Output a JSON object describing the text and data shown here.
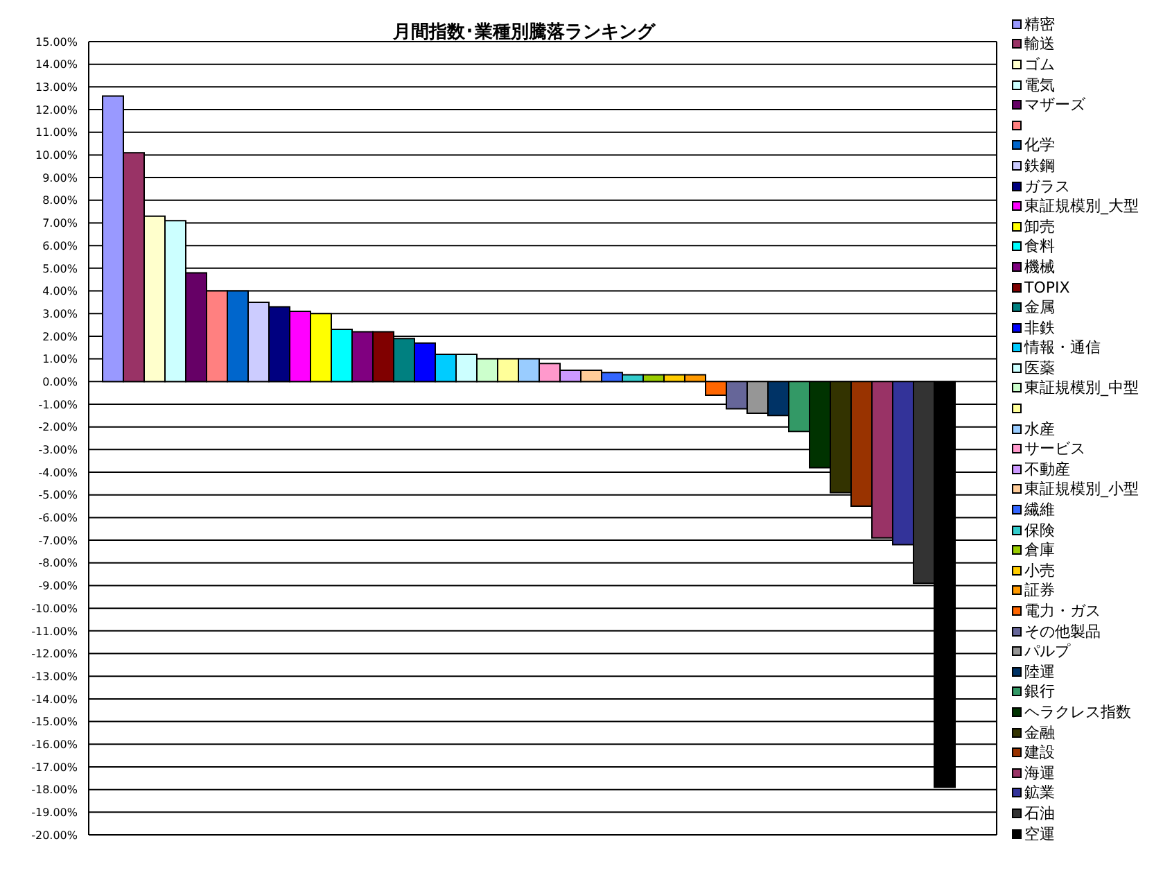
{
  "chart_data": {
    "type": "bar",
    "title": "月間指数･業種別騰落ランキング",
    "categories": [
      null
    ],
    "ylim": [
      -20,
      15
    ],
    "yticks": [
      {
        "value": 15,
        "label": "15.00%"
      },
      {
        "value": 14,
        "label": "14.00%"
      },
      {
        "value": 13,
        "label": "13.00%"
      },
      {
        "value": 12,
        "label": "12.00%"
      },
      {
        "value": 11,
        "label": "11.00%"
      },
      {
        "value": 10,
        "label": "10.00%"
      },
      {
        "value": 9,
        "label": "9.00%"
      },
      {
        "value": 8,
        "label": "8.00%"
      },
      {
        "value": 7,
        "label": "7.00%"
      },
      {
        "value": 6,
        "label": "6.00%"
      },
      {
        "value": 5,
        "label": "5.00%"
      },
      {
        "value": 4,
        "label": "4.00%"
      },
      {
        "value": 3,
        "label": "3.00%"
      },
      {
        "value": 2,
        "label": "2.00%"
      },
      {
        "value": 1,
        "label": "1.00%"
      },
      {
        "value": 0,
        "label": "0.00%"
      },
      {
        "value": -1,
        "label": "-1.00%"
      },
      {
        "value": -2,
        "label": "-2.00%"
      },
      {
        "value": -3,
        "label": "-3.00%"
      },
      {
        "value": -4,
        "label": "-4.00%"
      },
      {
        "value": -5,
        "label": "-5.00%"
      },
      {
        "value": -6,
        "label": "-6.00%"
      },
      {
        "value": -7,
        "label": "-7.00%"
      },
      {
        "value": -8,
        "label": "-8.00%"
      },
      {
        "value": -9,
        "label": "-9.00%"
      },
      {
        "value": -10,
        "label": "-10.00%"
      },
      {
        "value": -11,
        "label": "-11.00%"
      },
      {
        "value": -12,
        "label": "-12.00%"
      },
      {
        "value": -13,
        "label": "-13.00%"
      },
      {
        "value": -14,
        "label": "-14.00%"
      },
      {
        "value": -15,
        "label": "-15.00%"
      },
      {
        "value": -16,
        "label": "-16.00%"
      },
      {
        "value": -17,
        "label": "-17.00%"
      },
      {
        "value": -18,
        "label": "-18.00%"
      },
      {
        "value": -19,
        "label": "-19.00%"
      },
      {
        "value": -20,
        "label": "-20.00%"
      }
    ],
    "grid": "y",
    "legend": "right",
    "series": [
      {
        "name": "精密",
        "color": "#9999ff",
        "values": [
          12.6
        ]
      },
      {
        "name": "輸送",
        "color": "#993366",
        "values": [
          10.1
        ]
      },
      {
        "name": "ゴム",
        "color": "#ffffcc",
        "values": [
          7.3
        ]
      },
      {
        "name": "電気",
        "color": "#ccffff",
        "values": [
          7.1
        ]
      },
      {
        "name": "マザーズ",
        "color": "#660066",
        "values": [
          4.8
        ]
      },
      {
        "color": "#ff8080",
        "values": [
          4.0
        ]
      },
      {
        "name": "化学",
        "color": "#0066cc",
        "values": [
          4.0
        ]
      },
      {
        "name": "鉄鋼",
        "color": "#ccccff",
        "values": [
          3.5
        ]
      },
      {
        "name": "ガラス",
        "color": "#000080",
        "values": [
          3.3
        ]
      },
      {
        "name": "東証規模別_大型",
        "color": "#ff00ff",
        "values": [
          3.1
        ]
      },
      {
        "name": "卸売",
        "color": "#ffff00",
        "values": [
          3.0
        ]
      },
      {
        "name": "食料",
        "color": "#00ffff",
        "values": [
          2.3
        ]
      },
      {
        "name": "機械",
        "color": "#800080",
        "values": [
          2.2
        ]
      },
      {
        "name": "TOPIX",
        "color": "#800000",
        "values": [
          2.2
        ]
      },
      {
        "name": "金属",
        "color": "#008080",
        "values": [
          1.9
        ]
      },
      {
        "name": "非鉄",
        "color": "#0000ff",
        "values": [
          1.7
        ]
      },
      {
        "name": "情報・通信",
        "color": "#00ccff",
        "values": [
          1.2
        ]
      },
      {
        "name": "医薬",
        "color": "#ccffff",
        "values": [
          1.2
        ]
      },
      {
        "name": "東証規模別_中型",
        "color": "#ccffcc",
        "values": [
          1.0
        ]
      },
      {
        "color": "#ffff99",
        "values": [
          1.0
        ]
      },
      {
        "name": "水産",
        "color": "#99ccff",
        "values": [
          1.0
        ]
      },
      {
        "name": "サービス",
        "color": "#ff99cc",
        "values": [
          0.8
        ]
      },
      {
        "name": "不動産",
        "color": "#cc99ff",
        "values": [
          0.5
        ]
      },
      {
        "name": "東証規模別_小型",
        "color": "#ffcc99",
        "values": [
          0.5
        ]
      },
      {
        "name": "繊維",
        "color": "#3366ff",
        "values": [
          0.4
        ]
      },
      {
        "name": "保険",
        "color": "#33cccc",
        "values": [
          0.3
        ]
      },
      {
        "name": "倉庫",
        "color": "#99cc00",
        "values": [
          0.3
        ]
      },
      {
        "name": "小売",
        "color": "#ffcc00",
        "values": [
          0.3
        ]
      },
      {
        "name": "証券",
        "color": "#ff9900",
        "values": [
          0.3
        ]
      },
      {
        "name": "電力・ガス",
        "color": "#ff6600",
        "values": [
          -0.6
        ]
      },
      {
        "name": "その他製品",
        "color": "#666699",
        "values": [
          -1.2
        ]
      },
      {
        "name": "パルプ",
        "color": "#969696",
        "values": [
          -1.4
        ]
      },
      {
        "name": "陸運",
        "color": "#003366",
        "values": [
          -1.5
        ]
      },
      {
        "name": "銀行",
        "color": "#339966",
        "values": [
          -2.2
        ]
      },
      {
        "name": "ヘラクレス指数",
        "color": "#003300",
        "values": [
          -3.8
        ]
      },
      {
        "name": "金融",
        "color": "#333300",
        "values": [
          -4.9
        ]
      },
      {
        "name": "建設",
        "color": "#993300",
        "values": [
          -5.5
        ]
      },
      {
        "name": "海運",
        "color": "#993366",
        "values": [
          -6.9
        ]
      },
      {
        "name": "鉱業",
        "color": "#333399",
        "values": [
          -7.2
        ]
      },
      {
        "name": "石油",
        "color": "#333333",
        "values": [
          -8.9
        ]
      },
      {
        "name": "空運",
        "color": "#000000",
        "values": [
          -17.9
        ]
      }
    ]
  }
}
